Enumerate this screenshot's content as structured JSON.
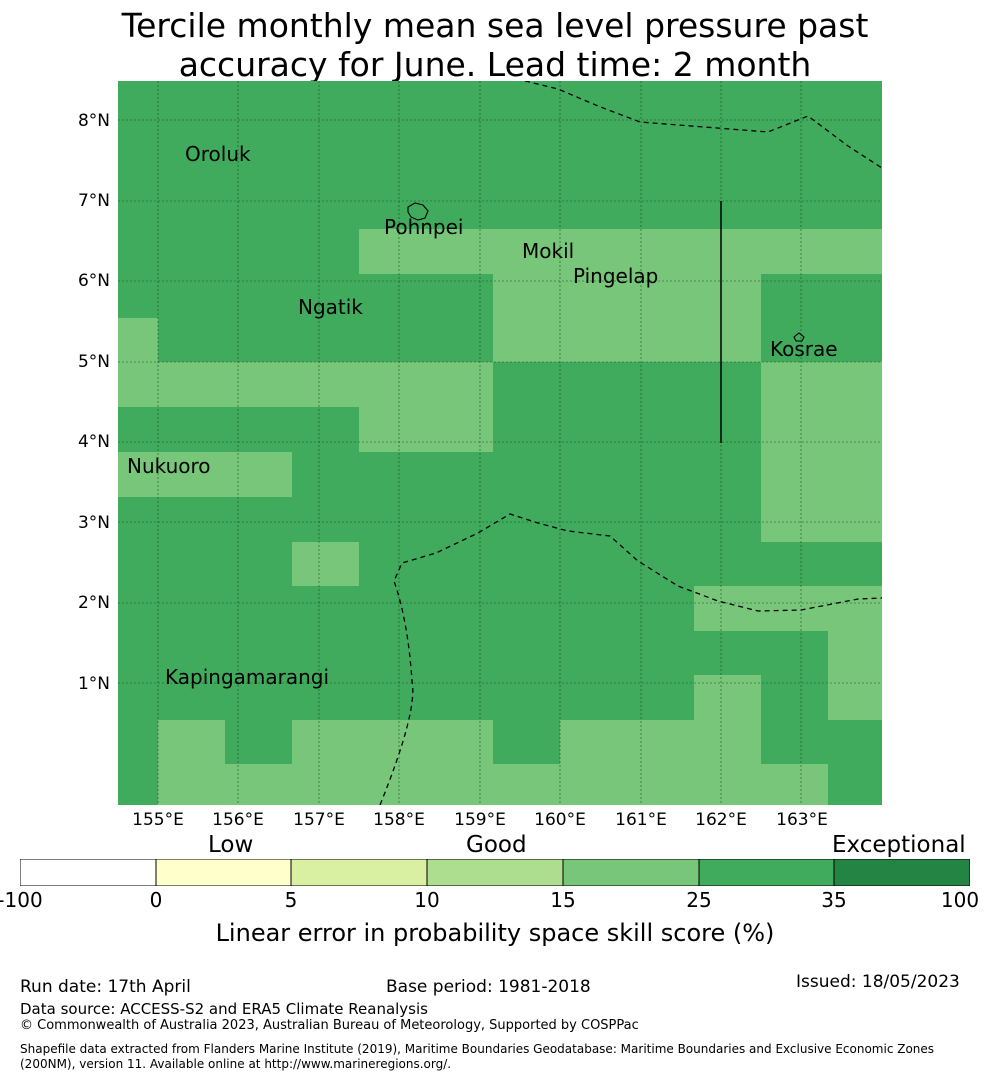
{
  "title": {
    "line1": "Tercile monthly mean sea level pressure past",
    "line2": "accuracy for June. Lead time: 2 month"
  },
  "map": {
    "lat_labels": [
      "8°N",
      "7°N",
      "6°N",
      "5°N",
      "4°N",
      "3°N",
      "2°N",
      "1°N"
    ],
    "lon_labels": [
      "155°E",
      "156°E",
      "157°E",
      "158°E",
      "159°E",
      "160°E",
      "161°E",
      "162°E",
      "163°E"
    ],
    "places": [
      "Oroluk",
      "Pohnpei",
      "Mokil",
      "Pingelap",
      "Ngatik",
      "Kosrae",
      "Nukuoro",
      "Kapingamarangi"
    ],
    "skill_colors": {
      "light": "#78c679",
      "medium": "#41ab5d"
    }
  },
  "colorbar": {
    "categories": [
      "Low",
      "Good",
      "Exceptional"
    ],
    "ticks": [
      "-100",
      "0",
      "5",
      "10",
      "15",
      "25",
      "35",
      "100"
    ],
    "colors": [
      "#ffffff",
      "#ffffcc",
      "#d9f0a3",
      "#addd8e",
      "#78c679",
      "#41ab5d",
      "#238443"
    ],
    "label": "Linear error in probability space skill score (%)"
  },
  "footer": {
    "run_date": "Run date: 17th April",
    "base_period": "Base period: 1981-2018",
    "issued": "Issued: 18/05/2023",
    "data_source": "Data source: ACCESS-S2 and ERA5 Climate Reanalysis",
    "copyright": "© Commonwealth of Australia 2023, Australian Bureau of Meteorology, Supported by COSPPac",
    "shapefile_line1": "Shapefile data extracted from Flanders Marine Institute (2019), Maritime Boundaries Geodatabase: Maritime Boundaries and Exclusive Economic Zones",
    "shapefile_line2": "(200NM), version 11. Available online at http://www.marineregions.org/."
  }
}
